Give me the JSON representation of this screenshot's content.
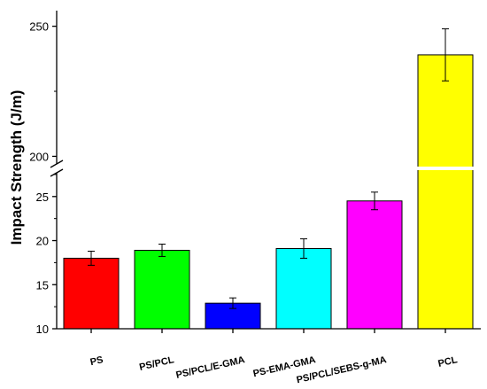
{
  "chart_data": {
    "type": "bar",
    "title": "",
    "xlabel": "",
    "ylabel": "Impact Strength (J/m)",
    "axis_break": {
      "lower_range": [
        10,
        29
      ],
      "upper_range": [
        193,
        256
      ]
    },
    "categories": [
      "PS",
      "PS/PCL",
      "PS/PCL/E-GMA",
      "PS-EMA-GMA",
      "PS/PCL/SEBS-g-MA",
      "PCL"
    ],
    "values": [
      18.0,
      18.9,
      12.9,
      19.1,
      24.5,
      239
    ],
    "errors": [
      0.8,
      0.7,
      0.6,
      1.1,
      1.0,
      10
    ],
    "colors": [
      "#ff0000",
      "#00ff00",
      "#0000ff",
      "#00ffff",
      "#ff00ff",
      "#ffff00"
    ],
    "lower_ticks": [
      10,
      15,
      20,
      25
    ],
    "upper_ticks": [
      200,
      250
    ],
    "grid": false,
    "legend": "none"
  }
}
